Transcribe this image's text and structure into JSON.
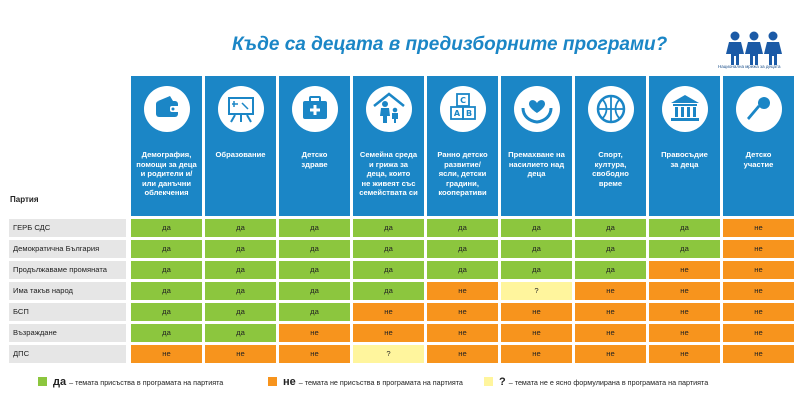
{
  "title": "Къде са децата в предизборните програми?",
  "logo_caption": "Национална мрежа за децата",
  "row_header": "Партия",
  "columns": [
    {
      "label": "Демография,\nпомощи за деца\nи родители и/\nили данъчни\nоблекчения",
      "icon": "wallet-icon"
    },
    {
      "label": "Образование",
      "icon": "blackboard-icon"
    },
    {
      "label": "Детско\nздраве",
      "icon": "medical-kit-icon"
    },
    {
      "label": "Семейна среда\nи грижа за\nдеца, които\nне живеят със\nсемействата си",
      "icon": "family-house-icon"
    },
    {
      "label": "Ранно детско\nразвитие/\nясли, детски\nградини,\nкооперативи",
      "icon": "abc-blocks-icon"
    },
    {
      "label": "Премахване на\nнасилието над\nдеца",
      "icon": "protecting-hands-icon"
    },
    {
      "label": "Спорт,\nкултура,\nсвободно\nвреме",
      "icon": "basketball-icon"
    },
    {
      "label": "Правосъдие\nза деца",
      "icon": "courthouse-icon"
    },
    {
      "label": "Детско\nучастие",
      "icon": "microphone-icon"
    }
  ],
  "rows": [
    {
      "party": "ГЕРБ СДС",
      "values": [
        "да",
        "да",
        "да",
        "да",
        "да",
        "да",
        "да",
        "да",
        "не"
      ]
    },
    {
      "party": "Демократична България",
      "values": [
        "да",
        "да",
        "да",
        "да",
        "да",
        "да",
        "да",
        "да",
        "не"
      ]
    },
    {
      "party": "Продължаваме промяната",
      "values": [
        "да",
        "да",
        "да",
        "да",
        "да",
        "да",
        "да",
        "не",
        "не"
      ]
    },
    {
      "party": "Има такъв народ",
      "values": [
        "да",
        "да",
        "да",
        "да",
        "не",
        "?",
        "не",
        "не",
        "не"
      ]
    },
    {
      "party": "БСП",
      "values": [
        "да",
        "да",
        "да",
        "не",
        "не",
        "не",
        "не",
        "не",
        "не"
      ]
    },
    {
      "party": "Възраждане",
      "values": [
        "да",
        "да",
        "не",
        "не",
        "не",
        "не",
        "не",
        "не",
        "не"
      ]
    },
    {
      "party": "ДПС",
      "values": [
        "не",
        "не",
        "не",
        "?",
        "не",
        "не",
        "не",
        "не",
        "не"
      ]
    }
  ],
  "legend": {
    "yes_word": "да",
    "yes_text": "– темата присъства в програмата на партията",
    "no_word": "не",
    "no_text": "– темата не присъства в програмата на партията",
    "unknown_word": "?",
    "unknown_text": "– темата не е ясно формулирана в програмата на партията"
  },
  "colors": {
    "header_blue": "#1b86c6",
    "yes": "#8cc63e",
    "no": "#f7941d",
    "unknown": "#fff59d",
    "party_bg": "#e6e6e6"
  }
}
